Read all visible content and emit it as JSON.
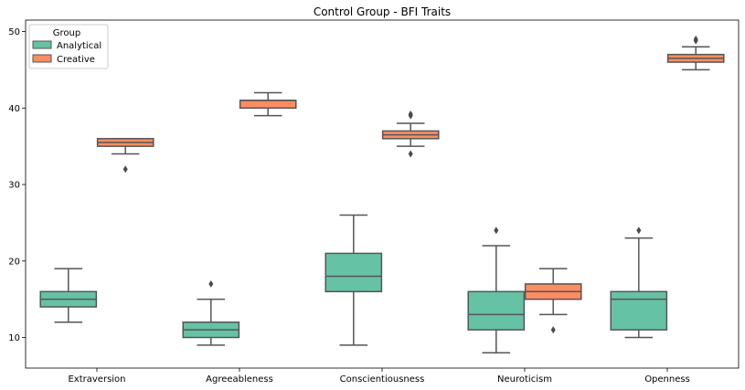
{
  "chart_data": {
    "type": "box",
    "title": "Control Group - BFI Traits",
    "xlabel": "",
    "ylabel": "",
    "ylim": [
      6,
      51.5
    ],
    "yticks": [
      10,
      20,
      30,
      40,
      50
    ],
    "categories": [
      "Extraversion",
      "Agreeableness",
      "Conscientiousness",
      "Neuroticism",
      "Openness"
    ],
    "legend": {
      "title": "Group",
      "position": "top-left"
    },
    "grid": false,
    "series": [
      {
        "name": "Analytical",
        "color": "#66c2a5",
        "boxes": [
          {
            "whislo": 12,
            "q1": 14,
            "med": 15,
            "q3": 16,
            "whishi": 19,
            "fliers": []
          },
          {
            "whislo": 9,
            "q1": 10,
            "med": 11,
            "q3": 12,
            "whishi": 15,
            "fliers": [
              17
            ]
          },
          {
            "whislo": 9,
            "q1": 16,
            "med": 18,
            "q3": 21,
            "whishi": 26,
            "fliers": []
          },
          {
            "whislo": 8,
            "q1": 11,
            "med": 13,
            "q3": 16,
            "whishi": 22,
            "fliers": [
              24
            ]
          },
          {
            "whislo": 10,
            "q1": 11,
            "med": 15,
            "q3": 16,
            "whishi": 23,
            "fliers": [
              24
            ]
          }
        ]
      },
      {
        "name": "Creative",
        "color": "#fc8d62",
        "boxes": [
          {
            "whislo": 34,
            "q1": 35,
            "med": 35.5,
            "q3": 36,
            "whishi": 36,
            "fliers": [
              32
            ]
          },
          {
            "whislo": 39,
            "q1": 40,
            "med": 41,
            "q3": 41,
            "whishi": 42,
            "fliers": []
          },
          {
            "whislo": 35,
            "q1": 36,
            "med": 36.5,
            "q3": 37,
            "whishi": 38,
            "fliers": [
              34,
              39,
              39.2
            ]
          },
          {
            "whislo": 13,
            "q1": 15,
            "med": 16,
            "q3": 17,
            "whishi": 19,
            "fliers": [
              11
            ]
          },
          {
            "whislo": 45,
            "q1": 46,
            "med": 46.5,
            "q3": 47,
            "whishi": 48,
            "fliers": [
              49,
              48.8
            ]
          }
        ]
      }
    ]
  }
}
